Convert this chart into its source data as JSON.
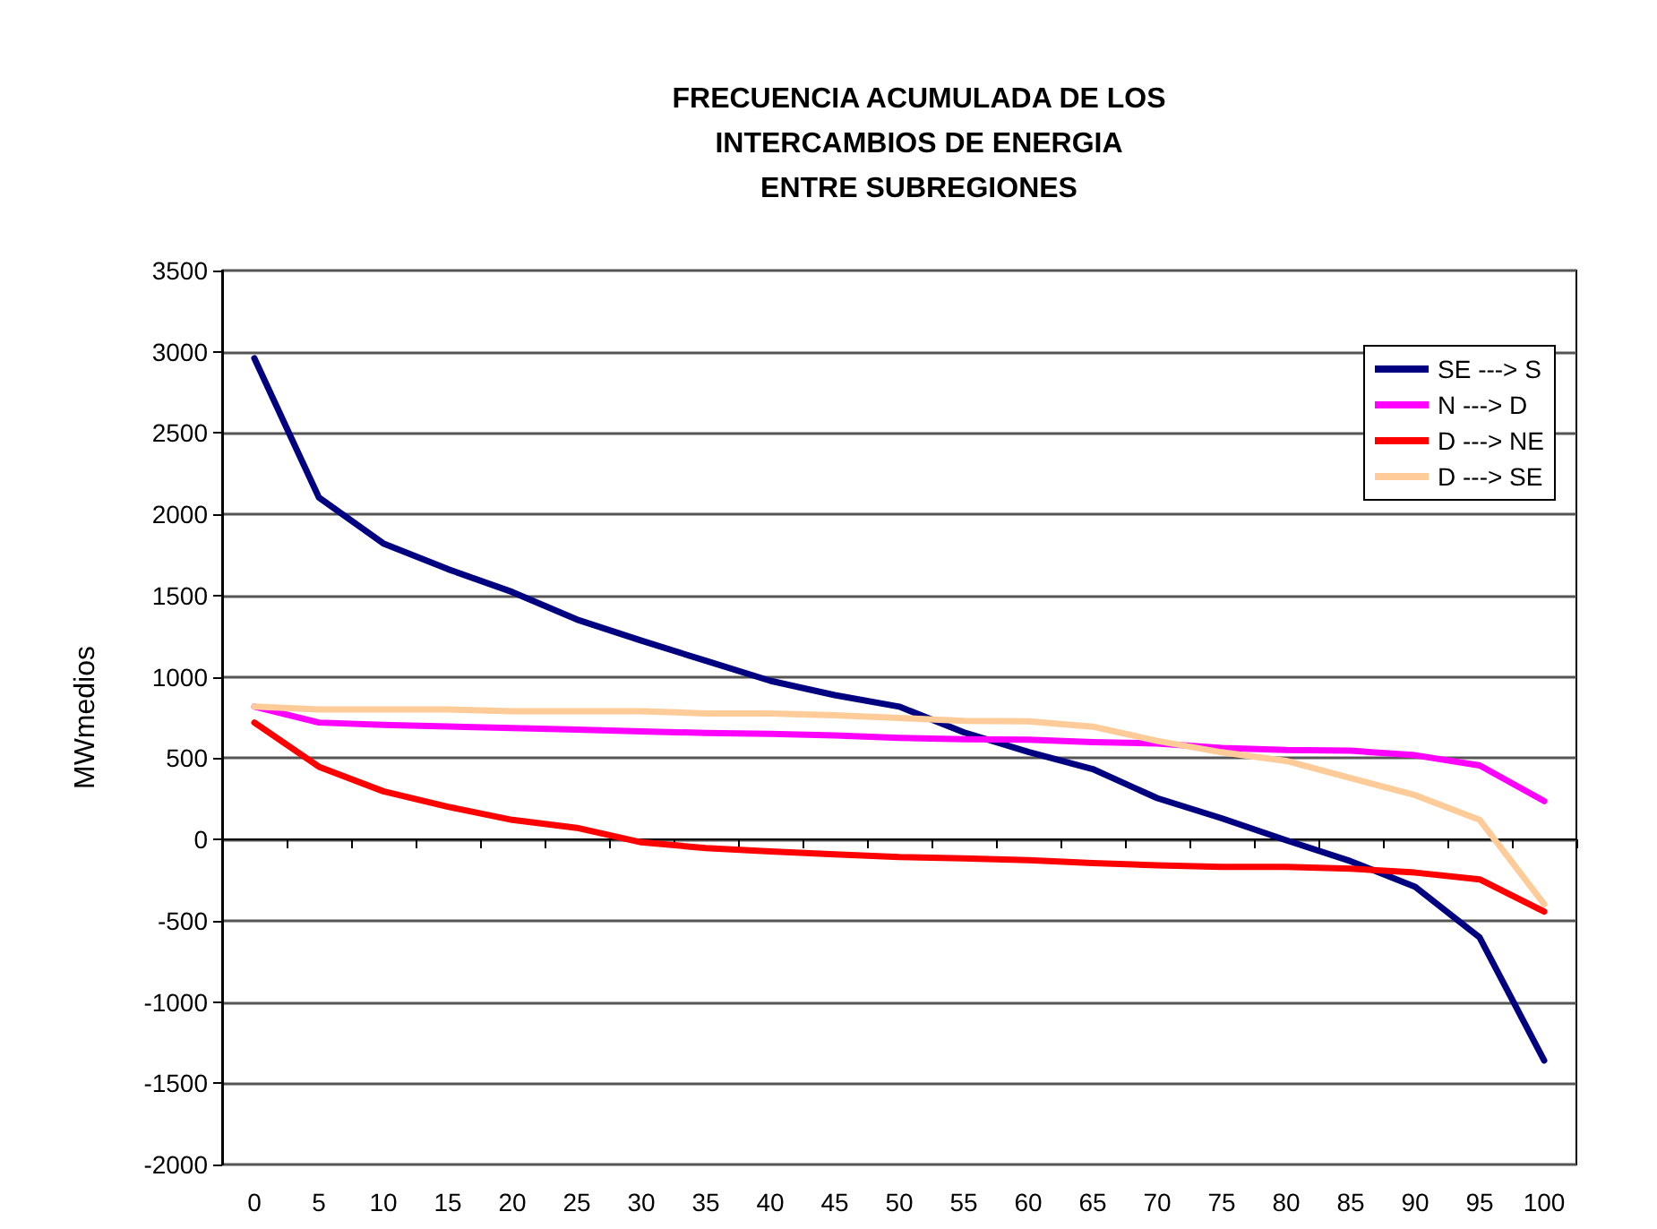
{
  "chart_data": {
    "type": "line",
    "title": "FRECUENCIA ACUMULADA DE LOS\nINTERCAMBIOS DE ENERGIA\nENTRE SUBREGIONES",
    "ylabel": "MWmedios",
    "categories": [
      "0",
      "5",
      "10",
      "15",
      "20",
      "25",
      "30",
      "35",
      "40",
      "45",
      "50",
      "55",
      "60",
      "65",
      "70",
      "75",
      "80",
      "85",
      "90",
      "95",
      "100"
    ],
    "series": [
      {
        "name": "SE ---> S",
        "color": "#000080",
        "values": [
          2960,
          2104,
          1821,
          1663,
          1522,
          1353,
          1223,
          1099,
          976,
          888,
          817,
          659,
          539,
          433,
          254,
          130,
          -5,
          -134,
          -292,
          -603,
          -1360
        ]
      },
      {
        "name": "N ---> D",
        "color": "#ff00ff",
        "values": [
          817,
          719,
          705,
          695,
          685,
          675,
          665,
          655,
          650,
          640,
          625,
          617,
          614,
          599,
          590,
          563,
          550,
          546,
          518,
          455,
          236
        ]
      },
      {
        "name": "D ---> NE",
        "color": "#ff0000",
        "values": [
          719,
          447,
          296,
          201,
          120,
          71,
          -18,
          -53,
          -74,
          -92,
          -109,
          -116,
          -127,
          -145,
          -159,
          -169,
          -169,
          -180,
          -204,
          -246,
          -444
        ]
      },
      {
        "name": "D ---> SE",
        "color": "#ffcc99",
        "values": [
          817,
          800,
          800,
          800,
          789,
          789,
          789,
          775,
          775,
          764,
          747,
          729,
          726,
          694,
          606,
          536,
          483,
          377,
          272,
          120,
          -398
        ]
      }
    ],
    "ylim": [
      -2000,
      3500
    ],
    "yticks": [
      -2000,
      -1500,
      -1000,
      -500,
      0,
      500,
      1000,
      1500,
      2000,
      2500,
      3000,
      3500
    ],
    "grid": "y",
    "legend": "top right",
    "marker": "none",
    "line_style": "solid"
  }
}
